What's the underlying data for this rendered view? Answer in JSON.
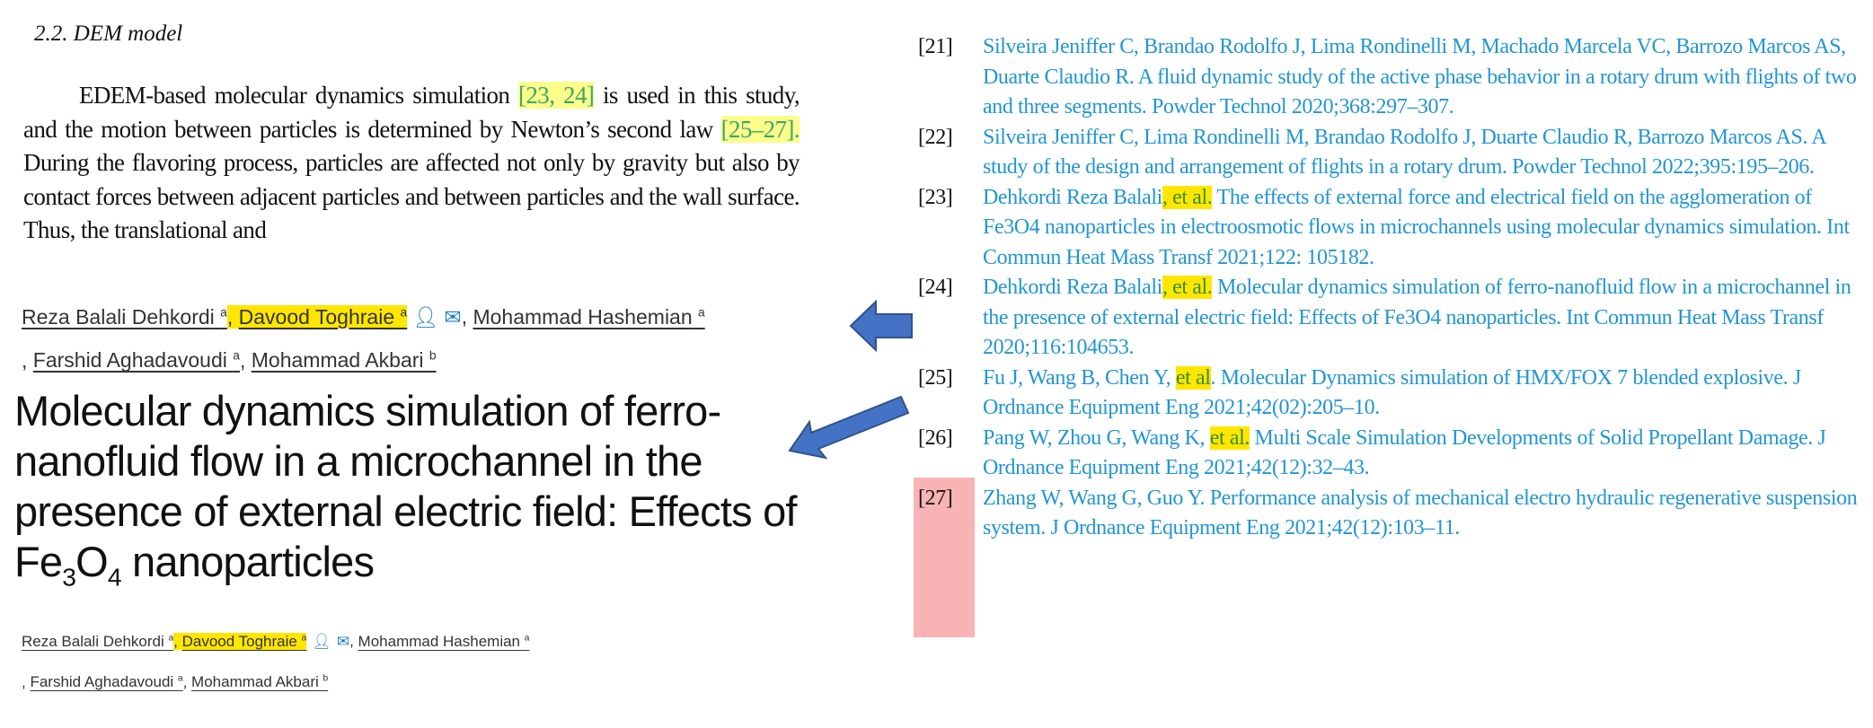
{
  "left_excerpt": {
    "heading": "2.2.  DEM model",
    "paragraph": {
      "p1": "EDEM-based molecular dynamics simulation ",
      "cite1": "[23, 24]",
      "p2": " is used in this study, and the motion between particles is determined by Newton’s second law ",
      "cite2": "[25–27].",
      "p3": " During the flavoring process, particles are affected not only by gravity but also by contact forces between adjacent particles and between particles and the wall surface. Thus, the translational and"
    }
  },
  "authors": [
    {
      "name": "Reza Balali Dehkordi",
      "aff": "a"
    },
    {
      "name": "Davood Toghraie",
      "aff": "a",
      "highlighted": true
    },
    {
      "name": "Mohammad Hashemian",
      "aff": "a"
    },
    {
      "name": "Farshid Aghadavoudi",
      "aff": "a"
    },
    {
      "name": "Mohammad Akbari",
      "aff": "b"
    }
  ],
  "author_icons": [
    "person-icon",
    "envelope-icon"
  ],
  "article_title": {
    "main": "Molecular dynamics simulation of ferro-nanofluid flow in a microchannel in the presence of external electric field: Effects of ",
    "fe": "Fe",
    "sub3": "3",
    "o": "O",
    "sub4": "4",
    "end": " nanoparticles"
  },
  "references": [
    {
      "num": "[21]",
      "authors": "Silveira Jeniffer C, Brandao Rodolfo J, Lima Rondinelli M, Machado Marcela VC, Barrozo Marcos AS, Duarte Claudio R.",
      "etal": "",
      "rest": " A fluid dynamic study of the active phase behavior in a rotary drum with flights of two and three segments. Powder Technol 2020;368:297–307."
    },
    {
      "num": "[22]",
      "authors": "Silveira Jeniffer C, Lima Rondinelli M, Brandao Rodolfo J, Duarte Claudio R, Barrozo Marcos AS.",
      "etal": "",
      "rest": " A study of the design and arrangement of flights in a rotary drum. Powder Technol 2022;395:195–206."
    },
    {
      "num": "[23]",
      "authors": "Dehkordi Reza Balali",
      "etal": ", et al.",
      "rest": " The effects of external force and electrical field on the agglomeration of Fe3O4 nanoparticles in electroosmotic flows in microchannels using molecular dynamics simulation. Int Commun Heat Mass Transf 2021;122: 105182."
    },
    {
      "num": "[24]",
      "authors": "Dehkordi Reza Balali",
      "etal": ", et al.",
      "rest": " Molecular dynamics simulation of ferro-nanofluid flow in a microchannel in the presence of external electric field: Effects of Fe3O4 nanoparticles. Int Commun Heat Mass Transf 2020;116:104653."
    },
    {
      "num": "[25]",
      "authors": "Fu J, Wang B, Chen Y, ",
      "etal": "et al",
      "rest": ". Molecular Dynamics simulation of HMX/FOX 7 blended explosive. J Ordnance Equipment Eng 2021;42(02):205–10."
    },
    {
      "num": "[26]",
      "authors": "Pang W, Zhou G, Wang K, ",
      "etal": "et al.",
      "rest": " Multi Scale Simulation Developments of Solid Propellant Damage. J Ordnance Equipment Eng 2021;42(12):32–43."
    },
    {
      "num": "[27]",
      "authors": "Zhang W, Wang G, Guo Y.",
      "etal": "",
      "rest": " Performance analysis of mechanical electro hydraulic regenerative suspension system. J Ordnance Equipment Eng 2021;42(12):103–11."
    }
  ],
  "colors": {
    "link_blue": "#2196d3",
    "highlight_yellow": "#ffe600",
    "flag_pink": "#f8b4b4",
    "arrow_blue": "#4472c4"
  }
}
